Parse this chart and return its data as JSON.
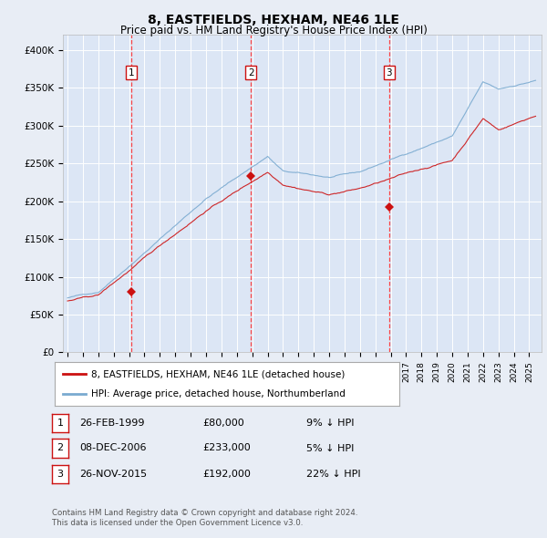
{
  "title": "8, EASTFIELDS, HEXHAM, NE46 1LE",
  "subtitle": "Price paid vs. HM Land Registry's House Price Index (HPI)",
  "background_color": "#e8edf5",
  "plot_bg_color": "#dce6f5",
  "grid_color": "#ffffff",
  "ylim": [
    0,
    420000
  ],
  "yticks": [
    0,
    50000,
    100000,
    150000,
    200000,
    250000,
    300000,
    350000,
    400000
  ],
  "ytick_labels": [
    "£0",
    "£50K",
    "£100K",
    "£150K",
    "£200K",
    "£250K",
    "£300K",
    "£350K",
    "£400K"
  ],
  "sale_years": [
    1999.15,
    2006.92,
    2015.9
  ],
  "sale_prices": [
    80000,
    233000,
    192000
  ],
  "sale_labels": [
    "1",
    "2",
    "3"
  ],
  "vline_color": "#ff3333",
  "hpi_color": "#7aaad0",
  "price_color": "#cc1111",
  "legend_entries": [
    "8, EASTFIELDS, HEXHAM, NE46 1LE (detached house)",
    "HPI: Average price, detached house, Northumberland"
  ],
  "table_rows": [
    [
      "1",
      "26-FEB-1999",
      "£80,000",
      "9% ↓ HPI"
    ],
    [
      "2",
      "08-DEC-2006",
      "£233,000",
      "5% ↓ HPI"
    ],
    [
      "3",
      "26-NOV-2015",
      "£192,000",
      "22% ↓ HPI"
    ]
  ],
  "footer": "Contains HM Land Registry data © Crown copyright and database right 2024.\nThis data is licensed under the Open Government Licence v3.0.",
  "xstart_year": 1995,
  "xend_year": 2025
}
